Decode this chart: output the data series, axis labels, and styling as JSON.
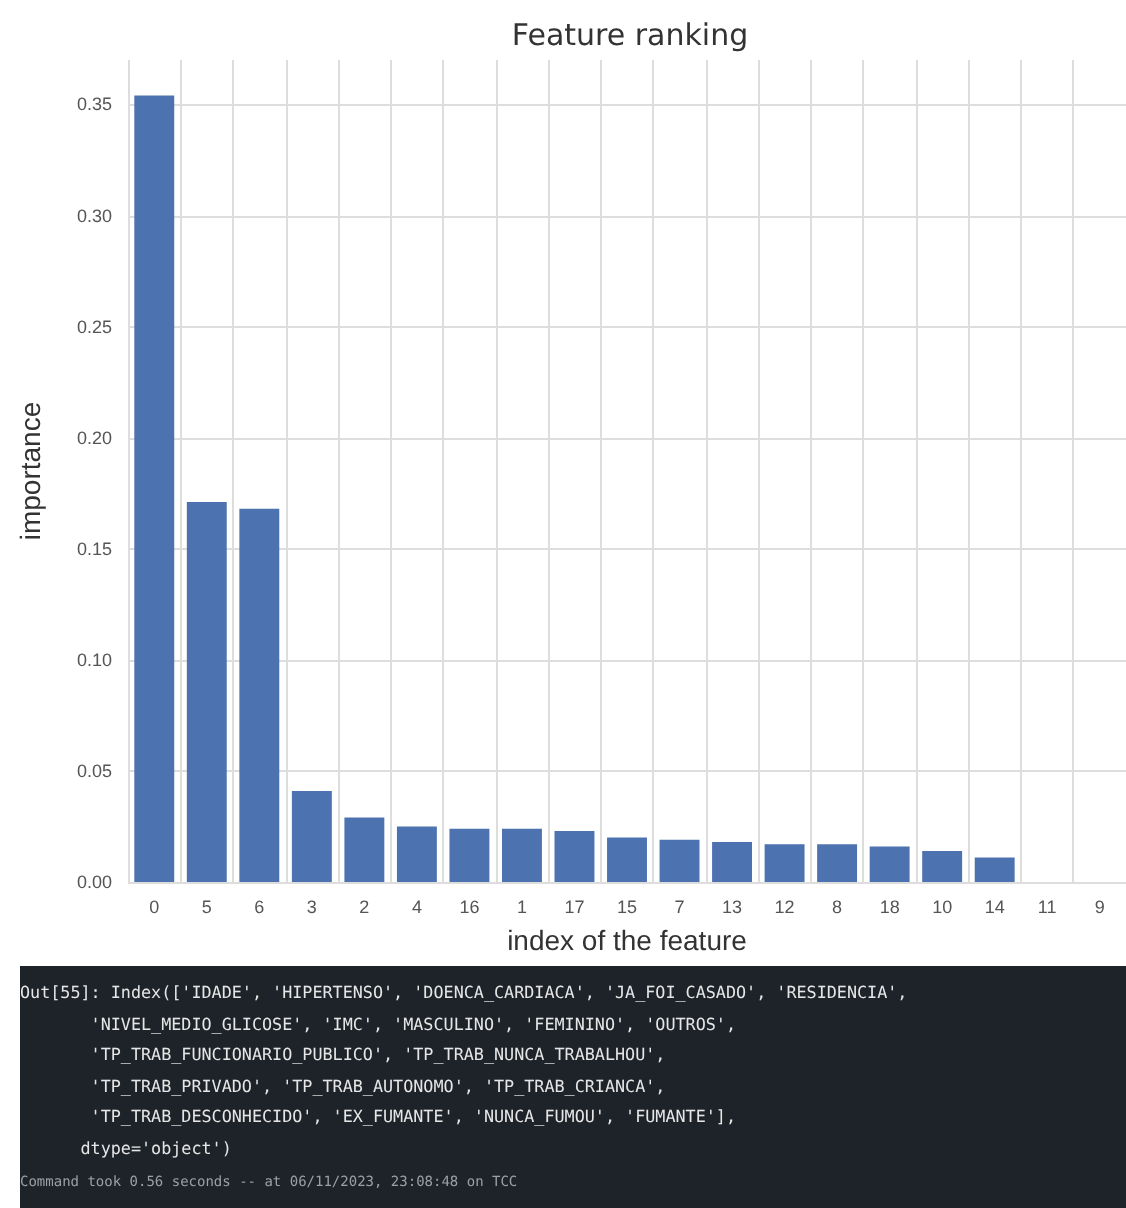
{
  "chart_data": {
    "type": "bar",
    "title": "Feature ranking",
    "xlabel": "index of the feature",
    "ylabel": "importance",
    "categories": [
      "0",
      "5",
      "6",
      "3",
      "2",
      "4",
      "16",
      "1",
      "17",
      "15",
      "7",
      "13",
      "12",
      "8",
      "18",
      "10",
      "14",
      "11",
      "9"
    ],
    "values": [
      0.354,
      0.171,
      0.168,
      0.041,
      0.029,
      0.025,
      0.024,
      0.024,
      0.023,
      0.02,
      0.019,
      0.018,
      0.017,
      0.017,
      0.016,
      0.014,
      0.011,
      0,
      0
    ],
    "color": "#4c72b0",
    "ylim": [
      0,
      0.37
    ],
    "yticks": [
      {
        "value": 0,
        "label": "0.00"
      },
      {
        "value": 0.05,
        "label": "0.05"
      },
      {
        "value": 0.1,
        "label": "0.10"
      },
      {
        "value": 0.15,
        "label": "0.15"
      },
      {
        "value": 0.2,
        "label": "0.20"
      },
      {
        "value": 0.25,
        "label": "0.25"
      },
      {
        "value": 0.3,
        "label": "0.30"
      },
      {
        "value": 0.35,
        "label": "0.35"
      }
    ],
    "grid": true,
    "annotations": [
      "Out[55]: Index(['IDADE', 'HIPERTENSO', 'DOENCA_CARDIACA', 'JA_FOI_CASADO', 'RESIDENCIA',\n       'NIVEL_MEDIO_GLICOSE', 'IMC', 'MASCULINO', 'FEMININO', 'OUTROS',\n       'TP_TRAB_FUNCIONARIO_PUBLICO', 'TP_TRAB_NUNCA_TRABALHOU',\n       'TP_TRAB_PRIVADO', 'TP_TRAB_AUTONOMO', 'TP_TRAB_CRIANCA',\n       'TP_TRAB_DESCONHECIDO', 'EX_FUMANTE', 'NUNCA_FUMOU', 'FUMANTE'],\n      dtype='object')",
      "Command took 0.56 seconds -- at 06/11/2023, 23:08:48 on TCC"
    ]
  }
}
